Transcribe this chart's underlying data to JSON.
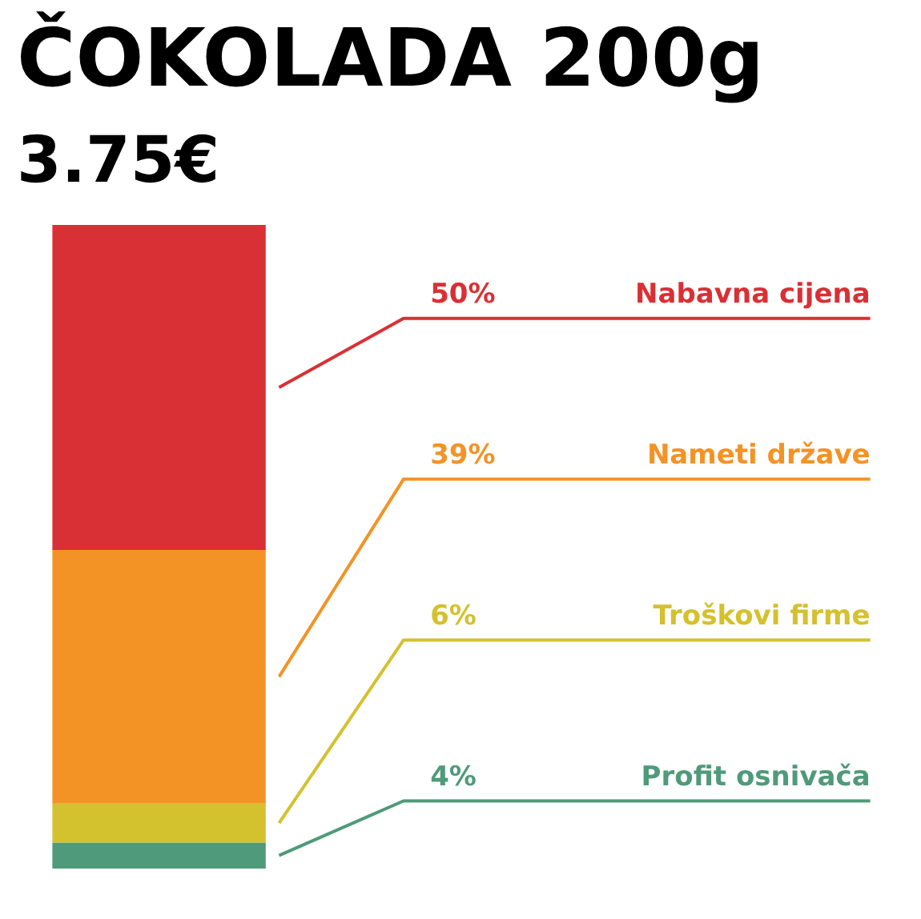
{
  "chart_data": {
    "type": "bar",
    "title": "ČOKOLADA 200g",
    "subtitle": "3.75€",
    "stacked": true,
    "categories": [
      null
    ],
    "series": [
      {
        "name": "Profit osnivača",
        "color": "#4f9a7a",
        "values": [
          4
        ],
        "value_labels": [
          "4%"
        ]
      },
      {
        "name": "Troškovi firme",
        "color": "#d4c12e",
        "values": [
          6
        ],
        "value_labels": [
          "6%"
        ]
      },
      {
        "name": "Nameti države",
        "color": "#f39325",
        "values": [
          39
        ],
        "value_labels": [
          "39%"
        ]
      },
      {
        "name": "Nabavna cijena",
        "color": "#d93035",
        "values": [
          50
        ],
        "value_labels": [
          "50%"
        ]
      }
    ]
  }
}
